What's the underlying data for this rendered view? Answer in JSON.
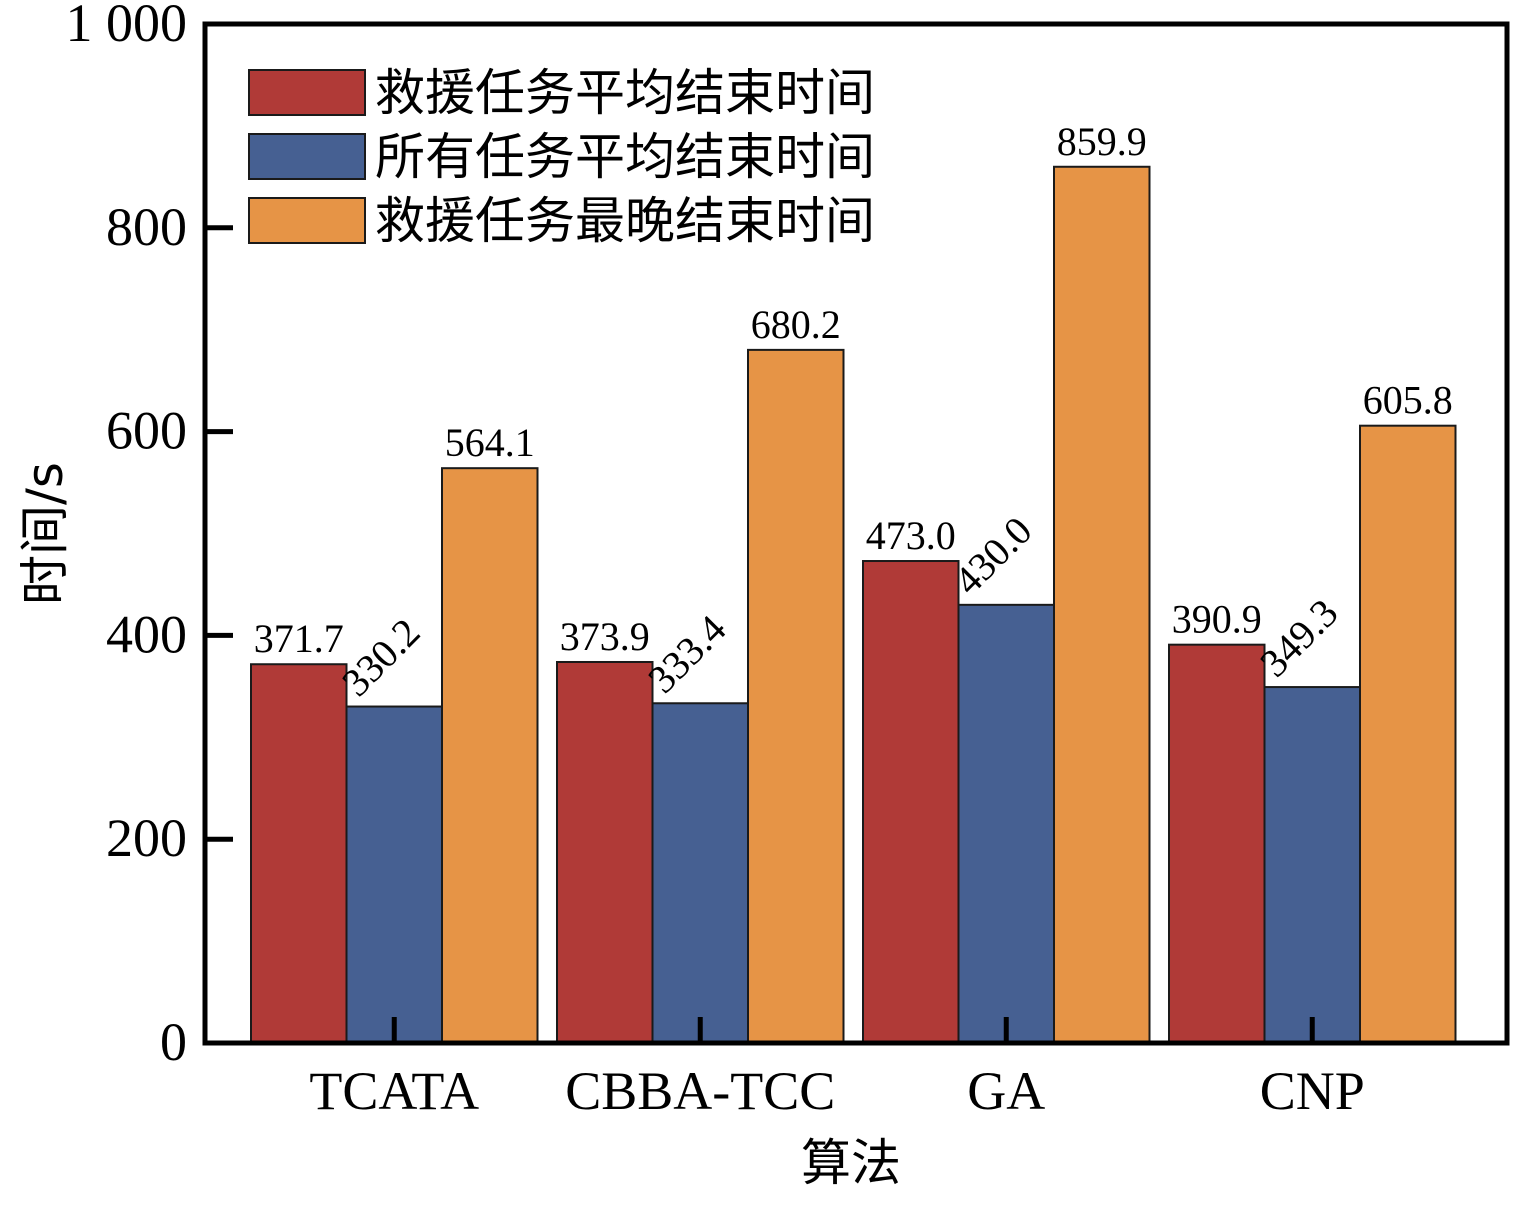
{
  "chart_data": {
    "type": "bar",
    "title": "",
    "xlabel": "算法",
    "ylabel": "时间/s",
    "categories": [
      "TCATA",
      "CBBA-TCC",
      "GA",
      "CNP"
    ],
    "ylim": [
      0,
      1000
    ],
    "yticks": [
      0,
      200,
      400,
      600,
      800,
      1000
    ],
    "ytick_labels": [
      "0",
      "200",
      "400",
      "600",
      "800",
      "1 000"
    ],
    "legend_position": "top-left",
    "grid": false,
    "series": [
      {
        "name": "救援任务平均结束时间",
        "color": "#b03a37",
        "values": [
          371.7,
          373.9,
          473.0,
          390.9
        ],
        "labels": [
          "371.7",
          "373.9",
          "473.0",
          "390.9"
        ],
        "label_rotation": 0
      },
      {
        "name": "所有任务平均结束时间",
        "color": "#466092",
        "values": [
          330.2,
          333.4,
          430.0,
          349.3
        ],
        "labels": [
          "330.2",
          "333.4",
          "430.0",
          "349.3"
        ],
        "label_rotation": -45
      },
      {
        "name": "救援任务最晚结束时间",
        "color": "#e69446",
        "values": [
          564.1,
          680.2,
          859.9,
          605.8
        ],
        "labels": [
          "564.1",
          "680.2",
          "859.9",
          "605.8"
        ],
        "label_rotation": 0
      }
    ]
  }
}
